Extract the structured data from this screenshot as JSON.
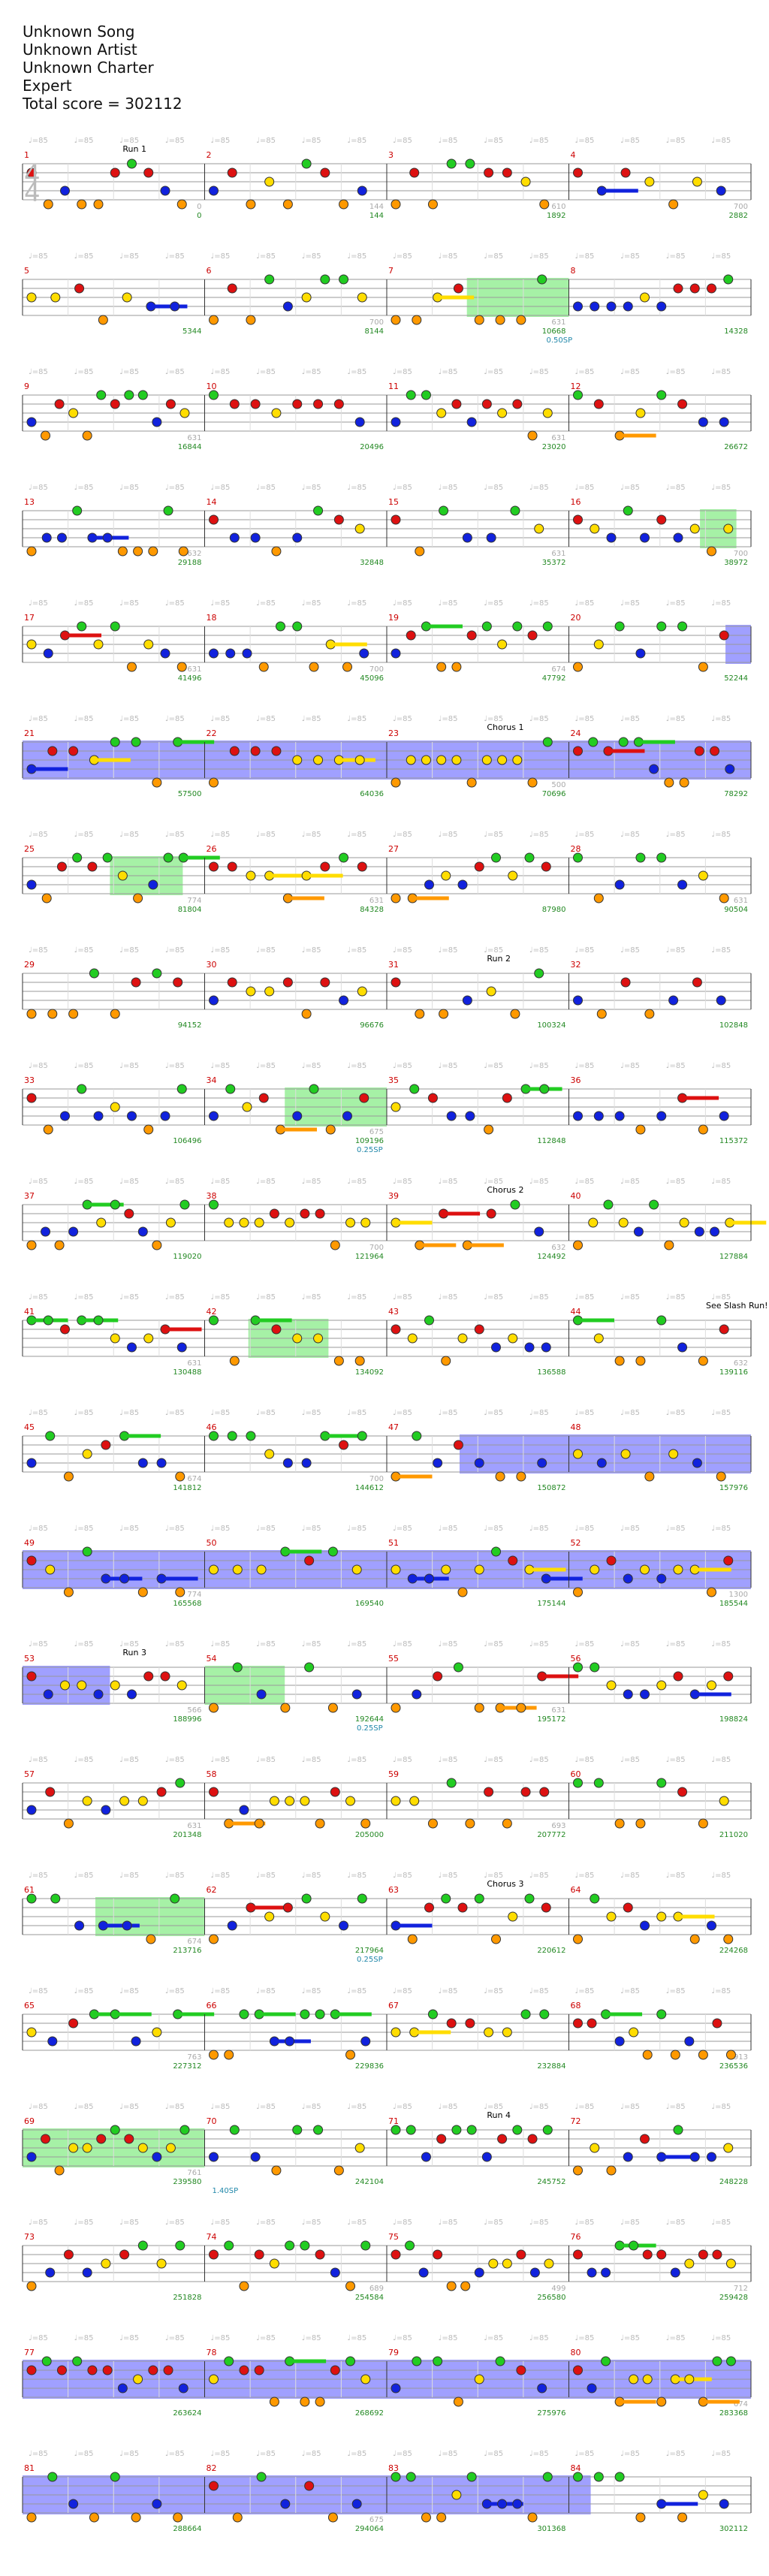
{
  "header": {
    "song": "Unknown Song",
    "artist": "Unknown Artist",
    "charter": "Unknown Charter",
    "difficulty": "Expert",
    "total_score_label": "Total score = 302112"
  },
  "colors": {
    "green": "#22cc22",
    "red": "#dd1111",
    "yellow": "#ffdd00",
    "blue": "#1122dd",
    "orange": "#ff9900",
    "star_power": "#90ee90",
    "overdrive": "#8888ff",
    "measure_number": "#cc0000",
    "score": "#228822",
    "bonus": "#2288aa"
  },
  "sections": [
    {
      "measure": 1,
      "label": "Run 1"
    },
    {
      "measure": 23,
      "label": "Chorus 1"
    },
    {
      "measure": 31,
      "label": "Run 2"
    },
    {
      "measure": 39,
      "label": "Chorus 2"
    },
    {
      "measure": 44,
      "label": "See Slash Run!"
    },
    {
      "measure": 53,
      "label": "Run 3"
    },
    {
      "measure": 63,
      "label": "Chorus 3"
    },
    {
      "measure": 71,
      "label": "Run 4"
    }
  ],
  "rows": [
    {
      "scores": [
        "0",
        "144",
        "1892",
        "2882"
      ],
      "counts": [
        "0",
        "144",
        "610",
        "700"
      ],
      "bonus": ""
    },
    {
      "scores": [
        "5344",
        "8144",
        "10668",
        "14328"
      ],
      "counts": [
        "",
        "700",
        "631",
        ""
      ],
      "bonus": "0.50SP"
    },
    {
      "scores": [
        "16844",
        "20496",
        "23020",
        "26672"
      ],
      "counts": [
        "631",
        "",
        "631",
        ""
      ],
      "bonus": ""
    },
    {
      "scores": [
        "29188",
        "32848",
        "35372",
        "38972"
      ],
      "counts": [
        "632",
        "",
        "631",
        "700"
      ],
      "bonus": ""
    },
    {
      "scores": [
        "41496",
        "45096",
        "47792",
        "52244"
      ],
      "counts": [
        "631",
        "700",
        "674",
        ""
      ],
      "bonus": ""
    },
    {
      "scores": [
        "57500",
        "64036",
        "70696",
        "78292"
      ],
      "counts": [
        "",
        "",
        "500",
        ""
      ],
      "bonus": ""
    },
    {
      "scores": [
        "81804",
        "84328",
        "87980",
        "90504"
      ],
      "counts": [
        "774",
        "631",
        "",
        "631"
      ],
      "bonus": ""
    },
    {
      "scores": [
        "94152",
        "96676",
        "100324",
        "102848"
      ],
      "counts": [
        "",
        "",
        "",
        ""
      ],
      "bonus": ""
    },
    {
      "scores": [
        "106496",
        "109196",
        "112848",
        "115372"
      ],
      "counts": [
        "",
        "675",
        "",
        ""
      ],
      "bonus": "0.25SP"
    },
    {
      "scores": [
        "119020",
        "121964",
        "124492",
        "127884"
      ],
      "counts": [
        "",
        "700",
        "632",
        ""
      ],
      "bonus": ""
    },
    {
      "scores": [
        "130488",
        "134092",
        "136588",
        "139116"
      ],
      "counts": [
        "631",
        "",
        "",
        "632"
      ],
      "bonus": ""
    },
    {
      "scores": [
        "141812",
        "144612",
        "150872",
        "157976"
      ],
      "counts": [
        "674",
        "700",
        "",
        ""
      ],
      "bonus": ""
    },
    {
      "scores": [
        "165568",
        "169540",
        "175144",
        "185544"
      ],
      "counts": [
        "774",
        "",
        "",
        "1300"
      ],
      "bonus": ""
    },
    {
      "scores": [
        "188996",
        "192644",
        "195172",
        "198824"
      ],
      "counts": [
        "566",
        "",
        "631",
        ""
      ],
      "bonus": "0.25SP"
    },
    {
      "scores": [
        "201348",
        "205000",
        "207772",
        "211020"
      ],
      "counts": [
        "631",
        "",
        "693",
        ""
      ],
      "bonus": ""
    },
    {
      "scores": [
        "213716",
        "217964",
        "220612",
        "224268"
      ],
      "counts": [
        "674",
        "",
        "",
        ""
      ],
      "bonus": "0.25SP"
    },
    {
      "scores": [
        "227312",
        "229836",
        "232884",
        "236536"
      ],
      "counts": [
        "763",
        "",
        "",
        "913"
      ],
      "bonus": ""
    },
    {
      "scores": [
        "239580",
        "242104",
        "245752",
        "248228"
      ],
      "counts": [
        "761",
        "",
        "",
        ""
      ],
      "bonus": "1.40SP"
    },
    {
      "scores": [
        "251828",
        "254584",
        "256580",
        "259428"
      ],
      "counts": [
        "",
        "689",
        "499",
        "712"
      ],
      "bonus": ""
    },
    {
      "scores": [
        "263624",
        "268692",
        "275976",
        "283368"
      ],
      "counts": [
        "",
        "",
        "",
        "674"
      ],
      "bonus": ""
    },
    {
      "scores": [
        "288664",
        "294064",
        "301368",
        "302112"
      ],
      "counts": [
        "",
        "675",
        "",
        ""
      ],
      "bonus": ""
    }
  ]
}
